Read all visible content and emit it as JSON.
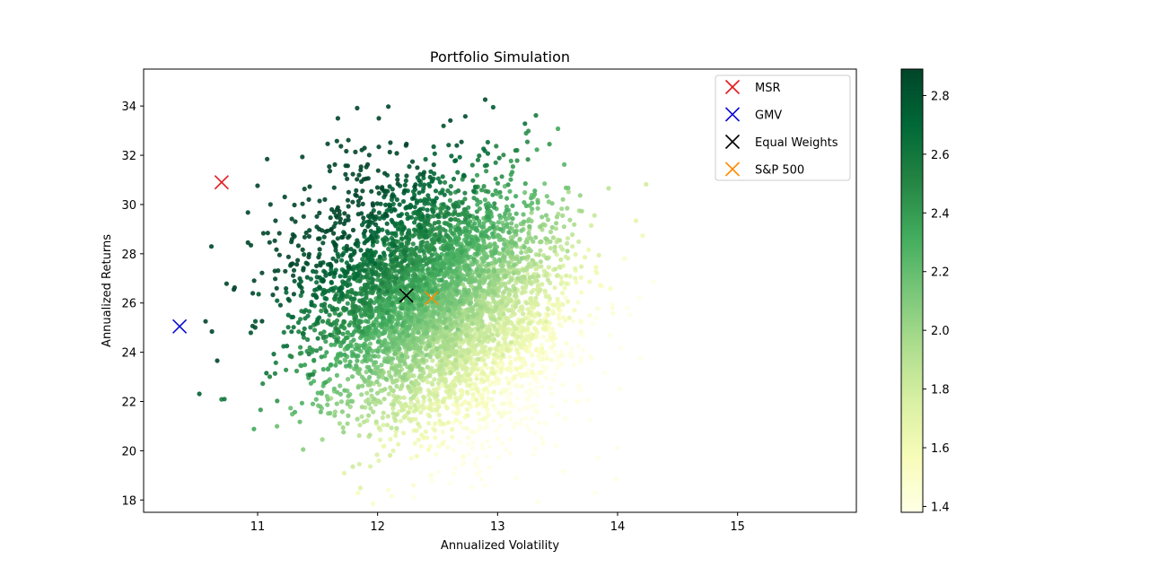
{
  "chart_data": {
    "type": "scatter",
    "title": "Portfolio Simulation",
    "xlabel": "Annualized Volatility",
    "ylabel": "Annualized Returns",
    "xlim": [
      10.05,
      15.99
    ],
    "ylim": [
      17.5,
      35.5
    ],
    "x_ticks": [
      11,
      12,
      13,
      14,
      15
    ],
    "y_ticks": [
      18,
      20,
      22,
      24,
      26,
      28,
      30,
      32,
      34
    ],
    "grid": false,
    "colormap": "YlGn",
    "colorbar": {
      "range": [
        1.38,
        2.89
      ],
      "ticks": [
        1.4,
        1.6,
        1.8,
        2.0,
        2.2,
        2.4,
        2.6,
        2.8
      ],
      "tick_labels": [
        "1.4",
        "1.6",
        "1.8",
        "2.0",
        "2.2",
        "2.4",
        "2.6",
        "2.8"
      ],
      "label": ""
    },
    "cloud": {
      "description_value": "simulated portfolios colored by Sharpe ratio",
      "center": [
        12.5,
        26.0
      ],
      "std": [
        0.55,
        2.5
      ],
      "count": 5200
    },
    "markers": [
      {
        "name": "MSR",
        "x": 10.7,
        "y": 30.9,
        "color": "#e31a1c"
      },
      {
        "name": "GMV",
        "x": 10.35,
        "y": 25.05,
        "color": "#0a0ad2"
      },
      {
        "name": "Equal Weights",
        "x": 12.24,
        "y": 26.3,
        "color": "#000000"
      },
      {
        "name": "S&P 500",
        "x": 12.45,
        "y": 26.2,
        "color": "#ff8c00"
      }
    ],
    "legend_position": "top-right"
  }
}
